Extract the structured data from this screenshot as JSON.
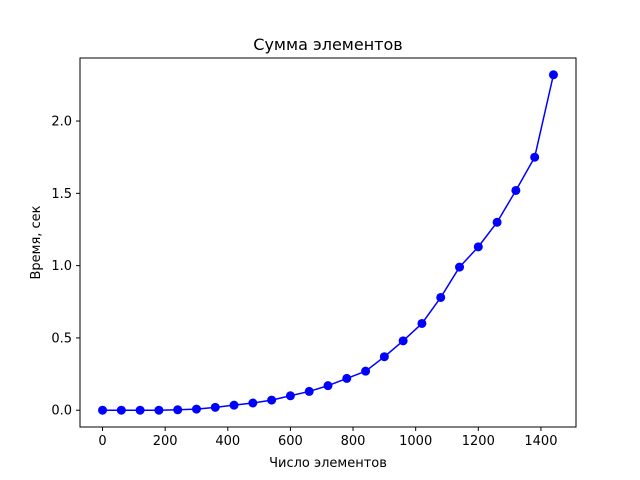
{
  "chart_data": {
    "type": "line",
    "title": "Сумма элементов",
    "xlabel": "Число элементов",
    "ylabel": "Время, сек",
    "xlim": [
      -72,
      1512
    ],
    "ylim": [
      -0.116,
      2.436
    ],
    "xticks": [
      0,
      200,
      400,
      600,
      800,
      1000,
      1200,
      1400
    ],
    "xtick_labels": [
      "0",
      "200",
      "400",
      "600",
      "800",
      "1000",
      "1200",
      "1400"
    ],
    "yticks": [
      0.0,
      0.5,
      1.0,
      1.5,
      2.0
    ],
    "ytick_labels": [
      "0.0",
      "0.5",
      "1.0",
      "1.5",
      "2.0"
    ],
    "grid": false,
    "series": [
      {
        "color": "#0000ff",
        "marker": "circle",
        "x": [
          0,
          60,
          120,
          180,
          240,
          300,
          360,
          420,
          480,
          540,
          600,
          660,
          720,
          780,
          840,
          900,
          960,
          1020,
          1080,
          1140,
          1200,
          1260,
          1320,
          1380,
          1440
        ],
        "y": [
          0.0,
          0.0,
          0.0,
          0.0,
          0.003,
          0.008,
          0.02,
          0.035,
          0.05,
          0.07,
          0.1,
          0.13,
          0.17,
          0.22,
          0.27,
          0.37,
          0.48,
          0.6,
          0.78,
          0.99,
          1.13,
          1.3,
          1.52,
          1.75,
          2.32
        ]
      }
    ]
  }
}
